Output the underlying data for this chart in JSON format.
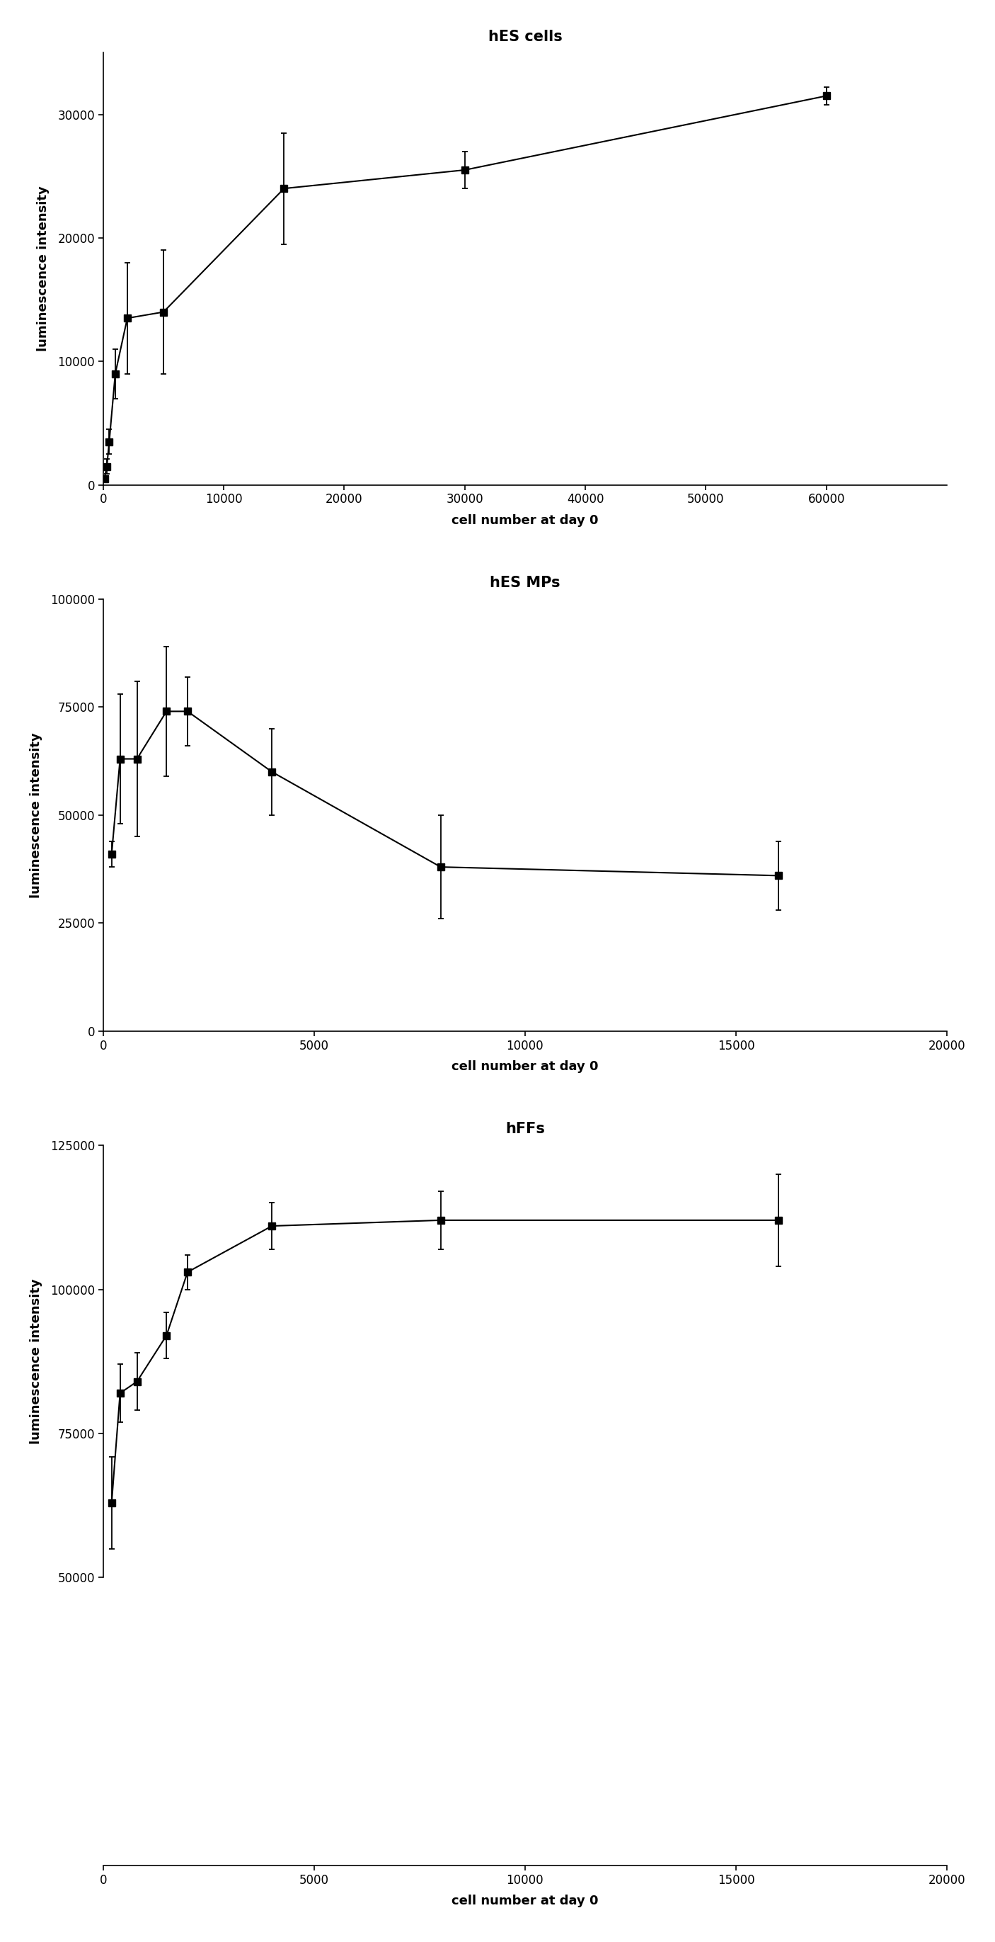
{
  "plots": [
    {
      "title": "hES cells",
      "xlabel": "cell number at day 0",
      "ylabel": "luminescence intensity",
      "x": [
        100,
        300,
        500,
        1000,
        2000,
        5000,
        15000,
        30000,
        60000
      ],
      "y": [
        500,
        1500,
        3500,
        9000,
        13500,
        14000,
        24000,
        25500,
        31500
      ],
      "yerr": [
        200,
        600,
        1000,
        2000,
        4500,
        5000,
        4500,
        1500,
        700
      ],
      "xlim": [
        0,
        70000
      ],
      "ylim": [
        0,
        35000
      ],
      "xticks": [
        0,
        10000,
        20000,
        30000,
        40000,
        50000,
        60000
      ],
      "xticklabels": [
        "0",
        "10000",
        "20000",
        "30000",
        "40000",
        "50000",
        "60000"
      ],
      "yticks": [
        0,
        10000,
        20000,
        30000
      ],
      "yticklabels": [
        "0",
        "10000",
        "20000",
        "30000"
      ]
    },
    {
      "title": "hES MPs",
      "xlabel": "cell number at day 0",
      "ylabel": "luminescence intensity",
      "x": [
        200,
        400,
        800,
        1500,
        2000,
        4000,
        8000,
        16000
      ],
      "y": [
        41000,
        63000,
        63000,
        74000,
        74000,
        60000,
        38000,
        36000
      ],
      "yerr": [
        3000,
        15000,
        18000,
        15000,
        8000,
        10000,
        12000,
        8000
      ],
      "xlim": [
        0,
        20000
      ],
      "ylim": [
        0,
        100000
      ],
      "xticks": [
        0,
        5000,
        10000,
        15000,
        20000
      ],
      "xticklabels": [
        "0",
        "5000",
        "10000",
        "15000",
        "20000"
      ],
      "yticks": [
        0,
        25000,
        50000,
        75000,
        100000
      ],
      "yticklabels": [
        "0",
        "25000",
        "50000",
        "75000",
        "100000"
      ]
    },
    {
      "title": "hFFs",
      "xlabel": "cell number at day 0",
      "ylabel": "luminescence intensity",
      "x": [
        200,
        400,
        800,
        1500,
        2000,
        4000,
        8000,
        16000
      ],
      "y": [
        63000,
        82000,
        84000,
        92000,
        103000,
        111000,
        112000,
        112000
      ],
      "yerr": [
        8000,
        5000,
        5000,
        4000,
        3000,
        4000,
        5000,
        8000
      ],
      "xlim": [
        0,
        20000
      ],
      "ylim": [
        50000,
        125000
      ],
      "xticks": [
        0,
        5000,
        10000,
        15000,
        20000
      ],
      "xticklabels": [
        "0",
        "5000",
        "10000",
        "15000",
        "20000"
      ],
      "yticks": [
        50000,
        75000,
        100000,
        125000
      ],
      "yticklabels": [
        "50000",
        "75000",
        "100000",
        "125000"
      ]
    }
  ],
  "line_color": "#000000",
  "marker": "s",
  "markersize": 7,
  "linewidth": 1.5,
  "capsize": 3,
  "title_fontsize": 15,
  "label_fontsize": 13,
  "tick_fontsize": 12,
  "background_color": "#ffffff"
}
